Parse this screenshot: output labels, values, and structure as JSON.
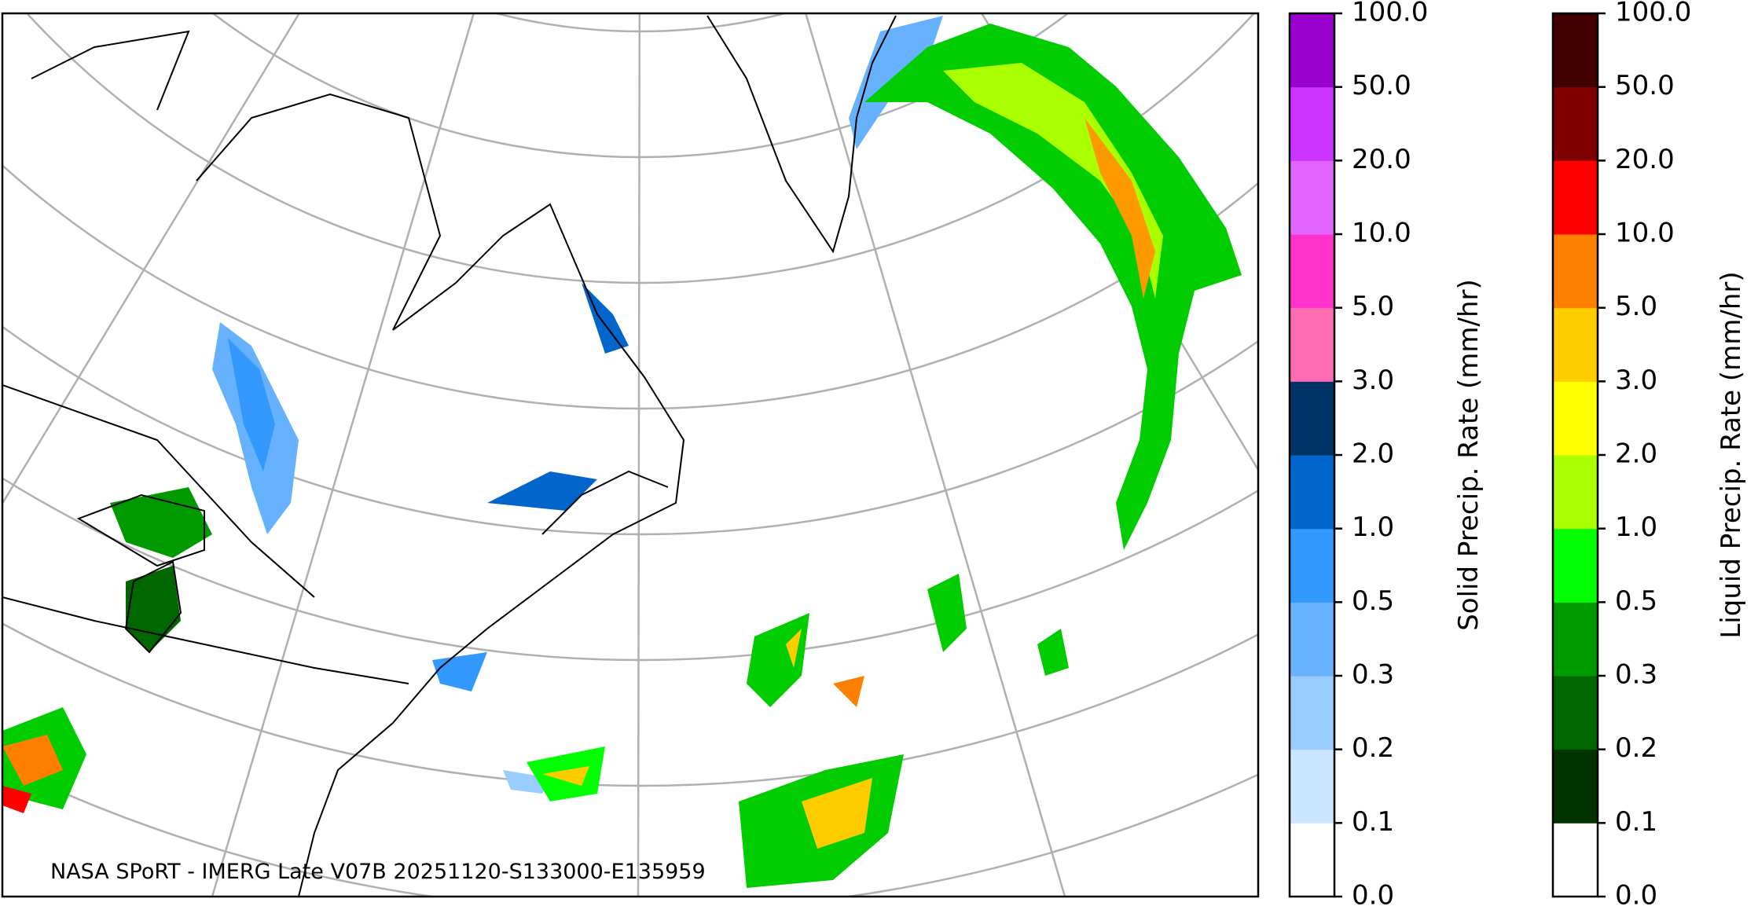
{
  "map": {
    "footer": "NASA SPoRT - IMERG Late V07B 20251120-S133000-E135959"
  },
  "colorbars": [
    {
      "label": "Solid Precip. Rate (mm/hr)",
      "ticks": [
        "0.0",
        "0.1",
        "0.2",
        "0.3",
        "0.5",
        "1.0",
        "2.0",
        "3.0",
        "5.0",
        "10.0",
        "20.0",
        "50.0",
        "100.0"
      ],
      "colors": [
        "#ffffff",
        "#cce5ff",
        "#99ccff",
        "#66b2ff",
        "#3399ff",
        "#0066cc",
        "#003366",
        "#ff6eb4",
        "#ff33cc",
        "#e066ff",
        "#cc33ff",
        "#9900cc"
      ]
    },
    {
      "label": "Liquid Precip. Rate (mm/hr)",
      "ticks": [
        "0.0",
        "0.1",
        "0.2",
        "0.3",
        "0.5",
        "1.0",
        "2.0",
        "3.0",
        "5.0",
        "10.0",
        "20.0",
        "50.0",
        "100.0"
      ],
      "colors": [
        "#ffffff",
        "#003300",
        "#006600",
        "#009900",
        "#00ff00",
        "#aaff00",
        "#ffff00",
        "#ffcc00",
        "#ff8000",
        "#ff0000",
        "#800000",
        "#400000"
      ]
    }
  ]
}
